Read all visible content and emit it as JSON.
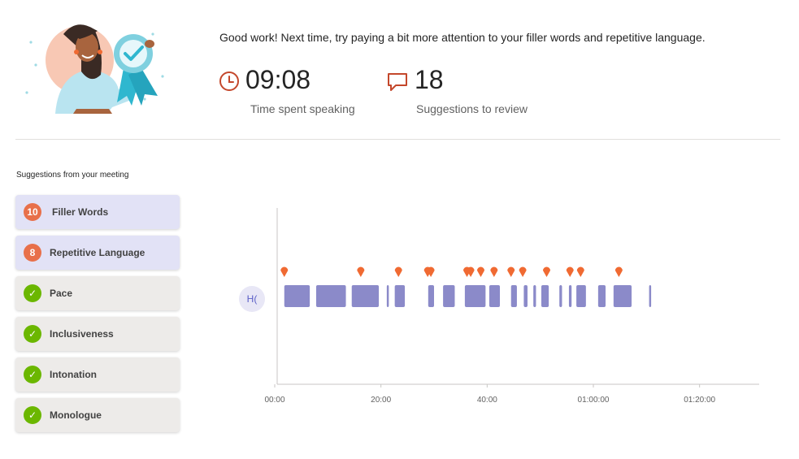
{
  "hero": {
    "message": "Good work! Next time, try paying a bit more attention to your filler words and repetitive language.",
    "time_spent": {
      "value": "09:08",
      "label": "Time spent speaking",
      "icon": "clock-icon"
    },
    "suggestions_count": {
      "value": "18",
      "label": "Suggestions to review",
      "icon": "speech-bubble-icon"
    },
    "accent_color": "#c4472b"
  },
  "suggestions": {
    "title": "Suggestions from your meeting",
    "items": [
      {
        "label": "Filler Words",
        "badge": "10",
        "type": "count",
        "active": true
      },
      {
        "label": "Repetitive Language",
        "badge": "8",
        "type": "count",
        "active": true
      },
      {
        "label": "Pace",
        "badge": "✓",
        "type": "ok",
        "active": false
      },
      {
        "label": "Inclusiveness",
        "badge": "✓",
        "type": "ok",
        "active": false
      },
      {
        "label": "Intonation",
        "badge": "✓",
        "type": "ok",
        "active": false
      },
      {
        "label": "Monologue",
        "badge": "✓",
        "type": "ok",
        "active": false
      }
    ]
  },
  "timeline": {
    "speaker_initials": "H(",
    "x_ticks": [
      "00:00",
      "20:00",
      "40:00",
      "01:00:00",
      "01:20:00"
    ],
    "x_tick_minutes": [
      0,
      20,
      40,
      60,
      80
    ],
    "x_max_minutes": 88,
    "segments_minutes": [
      [
        1.8,
        6.6
      ],
      [
        7.8,
        13.4
      ],
      [
        14.5,
        19.6
      ],
      [
        21.1,
        21.4
      ],
      [
        22.6,
        24.5
      ],
      [
        28.9,
        30.0
      ],
      [
        31.7,
        33.9
      ],
      [
        35.8,
        39.7
      ],
      [
        40.4,
        42.4
      ],
      [
        44.5,
        45.6
      ],
      [
        46.9,
        47.6
      ],
      [
        48.7,
        49.2
      ],
      [
        50.2,
        51.6
      ],
      [
        53.6,
        54.1
      ],
      [
        55.4,
        55.9
      ],
      [
        56.8,
        58.6
      ],
      [
        60.9,
        62.3
      ],
      [
        63.8,
        67.2
      ],
      [
        70.5,
        70.8
      ]
    ],
    "markers_minutes": [
      1.8,
      16.2,
      23.3,
      28.8,
      29.4,
      36.2,
      36.9,
      38.8,
      41.3,
      44.5,
      46.7,
      51.2,
      55.6,
      57.6,
      64.8
    ],
    "segment_color": "#8b8ac9",
    "marker_color": "#f06a32",
    "axis_color": "#c8c6c4"
  }
}
